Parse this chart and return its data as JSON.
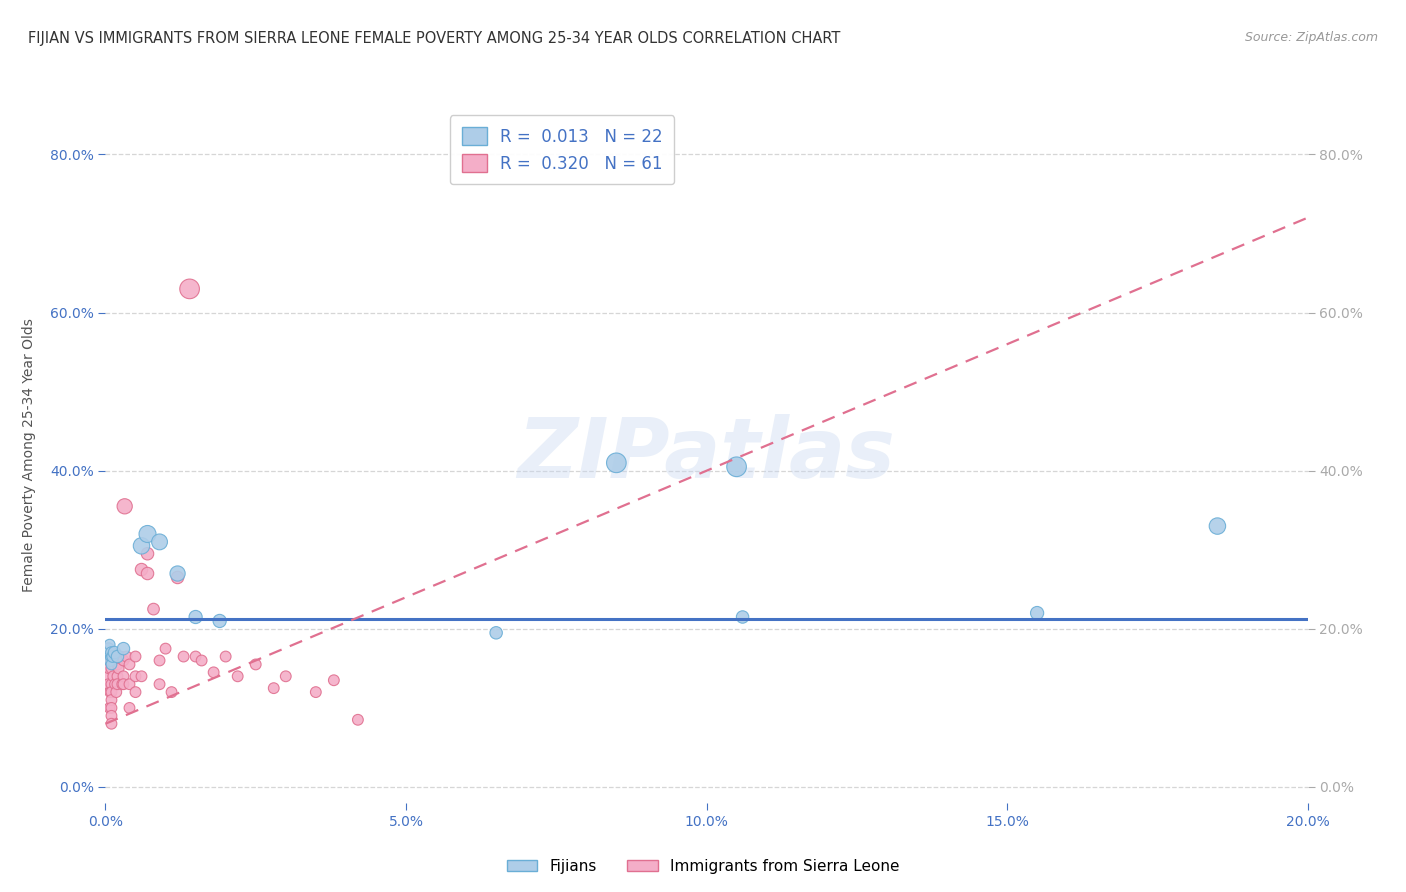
{
  "title": "FIJIAN VS IMMIGRANTS FROM SIERRA LEONE FEMALE POVERTY AMONG 25-34 YEAR OLDS CORRELATION CHART",
  "source": "Source: ZipAtlas.com",
  "ylabel": "Female Poverty Among 25-34 Year Olds",
  "xlim": [
    0.0,
    0.2
  ],
  "ylim": [
    -0.02,
    0.86
  ],
  "xticks": [
    0.0,
    0.05,
    0.1,
    0.15,
    0.2
  ],
  "yticks": [
    0.0,
    0.2,
    0.4,
    0.6,
    0.8
  ],
  "xticklabels": [
    "0.0%",
    "5.0%",
    "10.0%",
    "15.0%",
    "20.0%"
  ],
  "yticklabels": [
    "0.0%",
    "20.0%",
    "40.0%",
    "60.0%",
    "80.0%"
  ],
  "fijians_x": [
    0.0005,
    0.0007,
    0.0008,
    0.0009,
    0.001,
    0.001,
    0.0012,
    0.0015,
    0.002,
    0.003,
    0.006,
    0.007,
    0.009,
    0.012,
    0.015,
    0.019,
    0.065,
    0.085,
    0.105,
    0.106,
    0.155,
    0.185
  ],
  "fijians_y": [
    0.175,
    0.18,
    0.16,
    0.165,
    0.17,
    0.155,
    0.165,
    0.17,
    0.165,
    0.175,
    0.305,
    0.32,
    0.31,
    0.27,
    0.215,
    0.21,
    0.195,
    0.41,
    0.405,
    0.215,
    0.22,
    0.33
  ],
  "fijians_s": [
    70,
    60,
    70,
    60,
    70,
    60,
    70,
    80,
    80,
    80,
    140,
    150,
    130,
    120,
    90,
    90,
    80,
    200,
    200,
    80,
    90,
    140
  ],
  "sierra_x": [
    0.0003,
    0.0005,
    0.0006,
    0.0007,
    0.0008,
    0.0009,
    0.001,
    0.001,
    0.001,
    0.001,
    0.001,
    0.001,
    0.001,
    0.001,
    0.0012,
    0.0013,
    0.0014,
    0.0015,
    0.0016,
    0.0018,
    0.002,
    0.002,
    0.002,
    0.002,
    0.0022,
    0.0025,
    0.0028,
    0.003,
    0.003,
    0.003,
    0.0032,
    0.0035,
    0.004,
    0.004,
    0.004,
    0.005,
    0.005,
    0.005,
    0.006,
    0.006,
    0.007,
    0.007,
    0.008,
    0.009,
    0.009,
    0.01,
    0.011,
    0.012,
    0.013,
    0.014,
    0.015,
    0.016,
    0.018,
    0.02,
    0.022,
    0.025,
    0.028,
    0.03,
    0.035,
    0.038,
    0.042
  ],
  "sierra_y": [
    0.14,
    0.13,
    0.15,
    0.1,
    0.12,
    0.16,
    0.165,
    0.15,
    0.13,
    0.12,
    0.11,
    0.1,
    0.09,
    0.08,
    0.165,
    0.14,
    0.155,
    0.16,
    0.13,
    0.12,
    0.165,
    0.155,
    0.14,
    0.13,
    0.15,
    0.165,
    0.13,
    0.16,
    0.14,
    0.13,
    0.355,
    0.165,
    0.155,
    0.13,
    0.1,
    0.165,
    0.14,
    0.12,
    0.275,
    0.14,
    0.295,
    0.27,
    0.225,
    0.16,
    0.13,
    0.175,
    0.12,
    0.265,
    0.165,
    0.63,
    0.165,
    0.16,
    0.145,
    0.165,
    0.14,
    0.155,
    0.125,
    0.14,
    0.12,
    0.135,
    0.085
  ],
  "sierra_s": [
    60,
    60,
    60,
    60,
    60,
    60,
    60,
    60,
    60,
    60,
    60,
    60,
    60,
    60,
    60,
    60,
    60,
    60,
    60,
    60,
    60,
    60,
    60,
    60,
    60,
    60,
    60,
    60,
    60,
    60,
    120,
    60,
    60,
    60,
    60,
    60,
    60,
    60,
    80,
    60,
    80,
    80,
    70,
    60,
    60,
    60,
    60,
    80,
    60,
    200,
    60,
    60,
    60,
    60,
    60,
    60,
    60,
    60,
    60,
    60,
    60
  ],
  "fijians_color": "#aecde8",
  "fijians_edge": "#6aaed6",
  "sierra_color": "#f4aec8",
  "sierra_edge": "#e07090",
  "trend_blue": "#4472c4",
  "trend_pink": "#e07090",
  "R_fijian": "0.013",
  "N_fijian": "22",
  "R_sierra": "0.320",
  "N_sierra": "61",
  "watermark": "ZIPatlas",
  "bg": "#ffffff",
  "grid_color": "#cccccc",
  "label_color": "#4472c4",
  "title_color": "#333333",
  "trend_blue_ystart": 0.212,
  "trend_blue_yend": 0.212,
  "trend_pink_xstart": 0.0,
  "trend_pink_ystart": 0.08,
  "trend_pink_xend": 0.2,
  "trend_pink_yend": 0.72
}
